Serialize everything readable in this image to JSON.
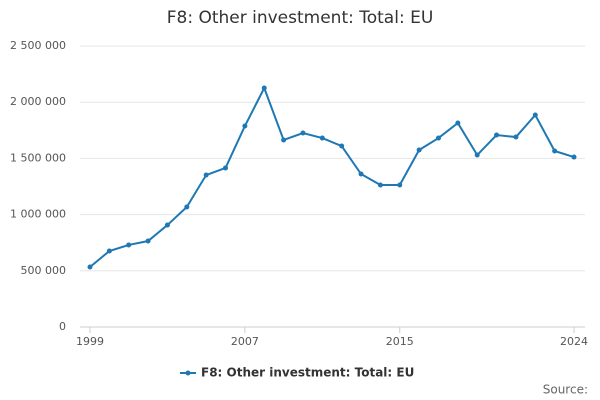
{
  "chart_data": {
    "type": "line",
    "title": "F8: Other investment: Total: EU",
    "x": [
      1999,
      2000,
      2001,
      2002,
      2003,
      2004,
      2005,
      2006,
      2007,
      2008,
      2009,
      2010,
      2011,
      2012,
      2013,
      2014,
      2015,
      2016,
      2017,
      2018,
      2019,
      2020,
      2021,
      2022,
      2023,
      2024
    ],
    "series": [
      {
        "name": "F8: Other investment: Total: EU",
        "color": "#1f78b4",
        "values": [
          534000,
          676000,
          730000,
          765000,
          907000,
          1068000,
          1352000,
          1415000,
          1788000,
          2126000,
          1664000,
          1726000,
          1681000,
          1610000,
          1361000,
          1263000,
          1263000,
          1575000,
          1681000,
          1815000,
          1530000,
          1708000,
          1690000,
          1886000,
          1566000,
          1512000
        ]
      }
    ],
    "xlim": [
      1999,
      2024
    ],
    "xticks": [
      1999,
      2007,
      2015,
      2024
    ],
    "ylim": [
      0,
      2500000
    ],
    "yticks": [
      0,
      {
        "value": 500000,
        "label": "500 000"
      },
      {
        "value": 1000000,
        "label": "1 000 000"
      },
      {
        "value": 1500000,
        "label": "1 500 000"
      },
      {
        "value": 2000000,
        "label": "2 000 000"
      },
      {
        "value": 2500000,
        "label": "2 500 000"
      }
    ],
    "grid": true,
    "source": "Source:"
  }
}
